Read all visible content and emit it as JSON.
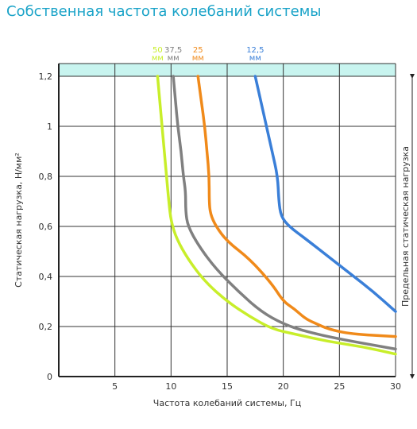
{
  "chart_data": {
    "type": "line",
    "title": "Собственная частота колебаний системы",
    "xlabel": "Частота колебаний системы, Гц",
    "ylabel": "Статическая нагрузка, Н/мм²",
    "xlim": [
      0,
      30
    ],
    "ylim": [
      0,
      1.2
    ],
    "x_ticks": [
      "5",
      "10",
      "15",
      "20",
      "25",
      "30"
    ],
    "y_ticks": [
      "0",
      "0,2",
      "0,4",
      "0,6",
      "0,8",
      "1",
      "1,2"
    ],
    "limit_label": "Предельная статическая нагрузка",
    "limit_value": 1.2,
    "colors": {
      "band": "#c8f4ef",
      "title": "#1aa3c8",
      "grid": "#333333"
    },
    "series": [
      {
        "name_value": "50",
        "name_unit": "мм",
        "color": "#c8ee2a",
        "points": [
          [
            8.8,
            1.2
          ],
          [
            9.0,
            1.1
          ],
          [
            9.2,
            1.0
          ],
          [
            9.4,
            0.9
          ],
          [
            9.6,
            0.8
          ],
          [
            9.8,
            0.7
          ],
          [
            10.0,
            0.62
          ],
          [
            10.5,
            0.55
          ],
          [
            11.5,
            0.47
          ],
          [
            13,
            0.38
          ],
          [
            15,
            0.3
          ],
          [
            17,
            0.24
          ],
          [
            19,
            0.19
          ],
          [
            21,
            0.17
          ],
          [
            24,
            0.14
          ],
          [
            27,
            0.12
          ],
          [
            30,
            0.09
          ]
        ]
      },
      {
        "name_value": "37,5",
        "name_unit": "мм",
        "color": "#808080",
        "points": [
          [
            10.2,
            1.2
          ],
          [
            10.4,
            1.1
          ],
          [
            10.6,
            1.0
          ],
          [
            10.9,
            0.9
          ],
          [
            11.1,
            0.8
          ],
          [
            11.3,
            0.74
          ],
          [
            11.3,
            0.66
          ],
          [
            11.5,
            0.6
          ],
          [
            12.5,
            0.52
          ],
          [
            14,
            0.43
          ],
          [
            16,
            0.34
          ],
          [
            18,
            0.26
          ],
          [
            20,
            0.21
          ],
          [
            22,
            0.18
          ],
          [
            25,
            0.15
          ],
          [
            30,
            0.11
          ]
        ]
      },
      {
        "name_value": "25",
        "name_unit": "мм",
        "color": "#f08a1a",
        "points": [
          [
            12.4,
            1.2
          ],
          [
            12.7,
            1.1
          ],
          [
            13.0,
            1.0
          ],
          [
            13.2,
            0.9
          ],
          [
            13.4,
            0.8
          ],
          [
            13.4,
            0.7
          ],
          [
            13.5,
            0.65
          ],
          [
            14,
            0.6
          ],
          [
            15,
            0.54
          ],
          [
            17,
            0.47
          ],
          [
            19,
            0.37
          ],
          [
            20,
            0.3
          ],
          [
            21,
            0.27
          ],
          [
            22,
            0.23
          ],
          [
            23,
            0.21
          ],
          [
            24,
            0.19
          ],
          [
            26,
            0.17
          ],
          [
            30,
            0.16
          ]
        ]
      },
      {
        "name_value": "12,5",
        "name_unit": "мм",
        "color": "#3a7fd8",
        "points": [
          [
            17.5,
            1.2
          ],
          [
            18.0,
            1.1
          ],
          [
            18.5,
            1.0
          ],
          [
            19.0,
            0.9
          ],
          [
            19.5,
            0.8
          ],
          [
            19.6,
            0.7
          ],
          [
            19.8,
            0.64
          ],
          [
            20.5,
            0.6
          ],
          [
            22,
            0.55
          ],
          [
            24,
            0.48
          ],
          [
            26,
            0.41
          ],
          [
            28,
            0.34
          ],
          [
            30,
            0.26
          ]
        ]
      }
    ]
  }
}
